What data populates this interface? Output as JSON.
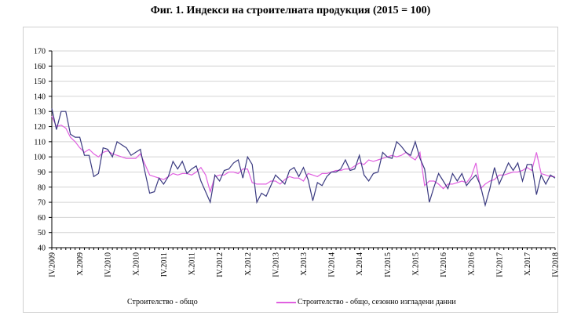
{
  "chart_data": {
    "type": "line",
    "title": "Фиг. 1. Индекси на строителната продукция (2015 = 100)",
    "x_start": "IV.2009",
    "x_end": "IV.2018",
    "frequency": "monthly",
    "x_tick_labels": [
      "IV.2009",
      "X.2009",
      "IV.2010",
      "X.2010",
      "IV.2011",
      "X.2011",
      "IV.2012",
      "X.2012",
      "IV.2013",
      "X.2013",
      "IV.2014",
      "X.2014",
      "IV.2015",
      "X.2015",
      "IV.2016",
      "X.2016",
      "IV.2017",
      "X.2017",
      "IV.2018"
    ],
    "y_ticks": [
      "40",
      "50",
      "60",
      "70",
      "80",
      "90",
      "100",
      "110",
      "120",
      "130",
      "140",
      "150",
      "160",
      "170"
    ],
    "ylim": [
      40,
      170
    ],
    "grid": "horizontal",
    "legend_position": "bottom",
    "series": [
      {
        "name": "Строителство - общо",
        "color": "#3a3a80",
        "values": [
          132,
          118,
          130,
          130,
          115,
          113,
          113,
          101,
          101,
          87,
          89,
          106,
          105,
          100,
          110,
          108,
          106,
          101,
          103,
          105,
          90,
          76,
          77,
          86,
          82,
          87,
          97,
          92,
          97,
          89,
          92,
          94,
          84,
          77,
          70,
          88,
          84,
          91,
          92,
          96,
          98,
          86,
          100,
          95,
          70,
          76,
          74,
          81,
          88,
          85,
          82,
          91,
          93,
          87,
          93,
          85,
          71,
          83,
          81,
          87,
          90,
          90,
          92,
          98,
          91,
          92,
          101,
          88,
          84,
          89,
          90,
          103,
          100,
          99,
          110,
          107,
          103,
          101,
          110,
          99,
          92,
          70,
          80,
          89,
          84,
          79,
          89,
          84,
          89,
          81,
          85,
          88,
          81,
          68,
          79,
          93,
          82,
          89,
          96,
          91,
          96,
          84,
          95,
          95,
          75,
          88,
          82,
          88,
          86
        ]
      },
      {
        "name": "Строителство - общо, сезонно изгладени данни",
        "color": "#e060e0",
        "values": [
          127,
          120,
          121,
          119,
          113,
          110,
          106,
          103,
          105,
          102,
          100,
          103,
          104,
          102,
          101,
          100,
          99,
          99,
          99,
          102,
          95,
          88,
          87,
          86,
          85,
          87,
          89,
          88,
          89,
          89,
          88,
          90,
          93,
          88,
          77,
          87,
          88,
          88,
          90,
          90,
          89,
          92,
          92,
          83,
          82,
          82,
          82,
          84,
          84,
          82,
          85,
          87,
          86,
          86,
          84,
          89,
          88,
          87,
          89,
          89,
          90,
          91,
          91,
          92,
          92,
          94,
          96,
          95,
          98,
          97,
          98,
          99,
          100,
          101,
          100,
          101,
          103,
          100,
          98,
          103,
          81,
          84,
          84,
          82,
          79,
          82,
          82,
          83,
          84,
          83,
          87,
          96,
          79,
          82,
          84,
          85,
          88,
          88,
          89,
          90,
          90,
          91,
          93,
          91,
          103,
          89,
          88,
          87,
          87
        ]
      }
    ]
  }
}
